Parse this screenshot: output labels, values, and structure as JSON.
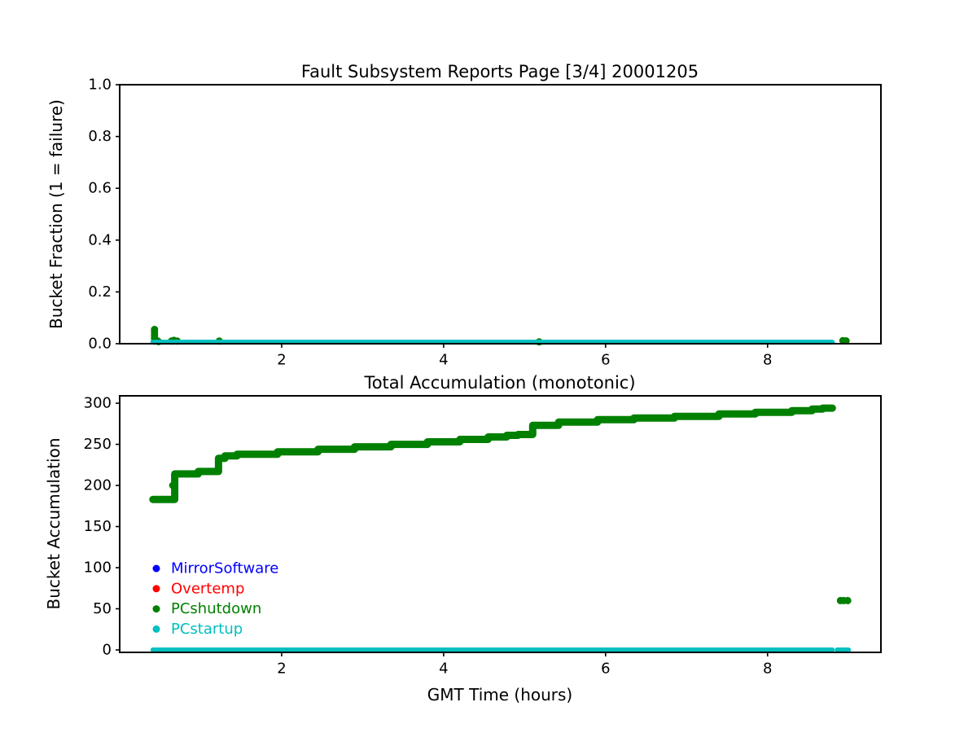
{
  "figure": {
    "background": "#ffffff",
    "frame_color": "#000000"
  },
  "chart_data": [
    {
      "type": "scatter",
      "title": "Fault Subsystem Reports Page [3/4] 20001205",
      "xlabel": "",
      "ylabel": "Bucket Fraction (1 = failure)",
      "xlim": [
        0,
        9.4
      ],
      "ylim": [
        0,
        1.0
      ],
      "grid": false,
      "xticks": [
        [
          2,
          "2"
        ],
        [
          4,
          "4"
        ],
        [
          6,
          "6"
        ],
        [
          8,
          "8"
        ]
      ],
      "yticks": [
        [
          0,
          "0.0"
        ],
        [
          0.2,
          "0.2"
        ],
        [
          0.4,
          "0.4"
        ],
        [
          0.6,
          "0.6"
        ],
        [
          0.8,
          "0.8"
        ],
        [
          1.0,
          "1.0"
        ]
      ],
      "series": [
        {
          "name": "PCshutdown",
          "kind": "points",
          "color": "#008000",
          "marker_radius": 4.5,
          "points": [
            [
              0.43,
              0.01
            ],
            [
              0.43,
              0.022
            ],
            [
              0.43,
              0.034
            ],
            [
              0.43,
              0.046
            ],
            [
              0.43,
              0.055
            ],
            [
              0.46,
              0.012
            ],
            [
              0.48,
              0.008
            ],
            [
              0.64,
              0.01
            ],
            [
              0.67,
              0.013
            ],
            [
              0.71,
              0.01
            ],
            [
              1.23,
              0.01
            ],
            [
              5.18,
              0.007
            ],
            [
              8.93,
              0.012
            ],
            [
              8.97,
              0.011
            ]
          ]
        },
        {
          "name": "PCstartup",
          "kind": "hline-segments",
          "color": "#00bfbf",
          "y": 0.006,
          "line_width": 6,
          "segments": [
            [
              0.41,
              8.8
            ]
          ]
        }
      ]
    },
    {
      "type": "line",
      "title": "Total Accumulation (monotonic)",
      "xlabel": "GMT Time (hours)",
      "ylabel": "Bucket Accumulation",
      "xlim": [
        0,
        9.4
      ],
      "ylim": [
        -3,
        309
      ],
      "grid": false,
      "xticks": [
        [
          2,
          "2"
        ],
        [
          4,
          "4"
        ],
        [
          6,
          "6"
        ],
        [
          8,
          "8"
        ]
      ],
      "yticks": [
        [
          0,
          "0"
        ],
        [
          50,
          "50"
        ],
        [
          100,
          "100"
        ],
        [
          150,
          "150"
        ],
        [
          200,
          "200"
        ],
        [
          250,
          "250"
        ],
        [
          300,
          "300"
        ]
      ],
      "legend": {
        "position": "lower-left",
        "entries": [
          {
            "label": "MirrorSoftware",
            "color": "#0000ff"
          },
          {
            "label": "Overtemp",
            "color": "#ff0000"
          },
          {
            "label": "PCshutdown",
            "color": "#008000"
          },
          {
            "label": "PCstartup",
            "color": "#00bfbf"
          }
        ]
      },
      "series": [
        {
          "name": "PCshutdown",
          "kind": "step",
          "color": "#008000",
          "line_width": 9,
          "points": [
            [
              0.41,
              183
            ],
            [
              0.68,
              214
            ],
            [
              0.97,
              217
            ],
            [
              1.22,
              233
            ],
            [
              1.3,
              236
            ],
            [
              1.45,
              238
            ],
            [
              1.95,
              241
            ],
            [
              2.45,
              244
            ],
            [
              2.9,
              247
            ],
            [
              3.35,
              250
            ],
            [
              3.8,
              253
            ],
            [
              4.2,
              256
            ],
            [
              4.55,
              259
            ],
            [
              4.78,
              261
            ],
            [
              4.92,
              262
            ],
            [
              5.1,
              273
            ],
            [
              5.42,
              277
            ],
            [
              5.9,
              280
            ],
            [
              6.35,
              282
            ],
            [
              6.85,
              284
            ],
            [
              7.4,
              287
            ],
            [
              7.85,
              289
            ],
            [
              8.3,
              291
            ],
            [
              8.55,
              293
            ],
            [
              8.68,
              294
            ],
            [
              8.8,
              294
            ]
          ]
        },
        {
          "name": "PCshutdown-isolated",
          "kind": "points",
          "color": "#008000",
          "marker_radius": 4.5,
          "points": [
            [
              0.655,
              200
            ],
            [
              8.9,
              60
            ],
            [
              8.94,
              60
            ],
            [
              8.99,
              60
            ]
          ]
        },
        {
          "name": "PCstartup",
          "kind": "hline-segments",
          "color": "#00bfbf",
          "y": 0,
          "line_width": 6,
          "segments": [
            [
              0.41,
              8.8
            ],
            [
              8.86,
              9.0
            ]
          ]
        }
      ]
    }
  ]
}
